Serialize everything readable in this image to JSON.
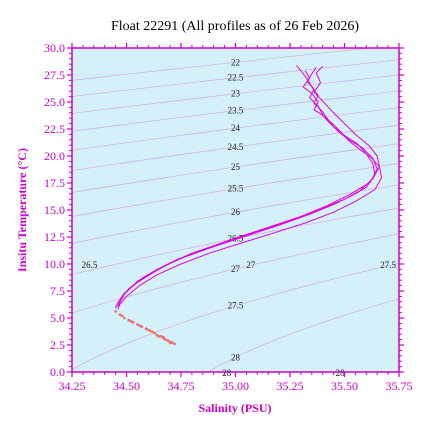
{
  "chart_data": {
    "type": "line",
    "title": "Float 22291  (All profiles as of 26 Feb 2026)",
    "xlabel": "Salinity (PSU)",
    "ylabel": "Insitu Temperature (°C)",
    "xlim": [
      34.25,
      35.75
    ],
    "ylim": [
      0.0,
      30.0
    ],
    "x_ticks": [
      "34.25",
      "34.50",
      "34.75",
      "35.00",
      "35.25",
      "35.50",
      "35.75"
    ],
    "y_ticks": [
      "0.0",
      "2.5",
      "5.0",
      "7.5",
      "10.0",
      "12.5",
      "15.0",
      "17.5",
      "20.0",
      "22.5",
      "25.0",
      "27.5",
      "30.0"
    ],
    "grid": false,
    "colors": {
      "axis": "#cc00cc",
      "plot_bg": "#d4f0f8",
      "profile": "#e000e0",
      "deep_points": "#f07070",
      "isopycnal": "#d8a8e8"
    },
    "isopycnals": [
      {
        "sigma": 22,
        "label": "22"
      },
      {
        "sigma": 22.5,
        "label": "22.5"
      },
      {
        "sigma": 23,
        "label": "23"
      },
      {
        "sigma": 23.5,
        "label": "23.5"
      },
      {
        "sigma": 24,
        "label": "24"
      },
      {
        "sigma": 24.5,
        "label": "24.5"
      },
      {
        "sigma": 25,
        "label": "25"
      },
      {
        "sigma": 25.5,
        "label": "25.5"
      },
      {
        "sigma": 26,
        "label": "26"
      },
      {
        "sigma": 26.5,
        "label": "26.5"
      },
      {
        "sigma": 27,
        "label": "27"
      },
      {
        "sigma": 27.5,
        "label": "27.5"
      },
      {
        "sigma": 28,
        "label": "28"
      }
    ],
    "density_side_labels": [
      {
        "label": "26.5",
        "x": 34.33,
        "y": 9.9
      },
      {
        "label": "27",
        "x": 35.07,
        "y": 9.9
      },
      {
        "label": "27.5",
        "x": 35.7,
        "y": 9.9
      },
      {
        "label": "28",
        "x": 34.96,
        "y": -0.1
      },
      {
        "label": "28",
        "x": 35.48,
        "y": -0.1
      }
    ],
    "series": [
      {
        "x": [
          35.28,
          35.3,
          35.33,
          35.35,
          35.38,
          35.36,
          35.4,
          35.42,
          35.45,
          35.48,
          35.52,
          35.57,
          35.62,
          35.66,
          35.67,
          35.64,
          35.55,
          35.45,
          35.32,
          35.18,
          35.02,
          34.88,
          34.75,
          34.64,
          34.56,
          34.5,
          34.47,
          34.46
        ],
        "y": [
          28.4,
          27.9,
          27.1,
          26.4,
          25.6,
          24.9,
          24.1,
          23.4,
          22.9,
          22.3,
          21.4,
          20.6,
          19.9,
          19.0,
          18.0,
          16.9,
          15.8,
          14.8,
          13.8,
          12.9,
          11.9,
          11.0,
          10.0,
          9.0,
          8.0,
          7.0,
          6.3,
          5.8
        ]
      },
      {
        "x": [
          35.37,
          35.35,
          35.33,
          35.36,
          35.34,
          35.38,
          35.4,
          35.43,
          35.47,
          35.52,
          35.58,
          35.63,
          35.65,
          35.62,
          35.53,
          35.42,
          35.3,
          35.15,
          35.0,
          34.86,
          34.73,
          34.63,
          34.55,
          34.49,
          34.46,
          34.45
        ],
        "y": [
          28.2,
          27.6,
          26.9,
          26.2,
          25.4,
          24.6,
          23.8,
          23.1,
          22.3,
          21.5,
          20.8,
          19.8,
          18.8,
          17.6,
          16.5,
          15.4,
          14.4,
          13.4,
          12.4,
          11.4,
          10.4,
          9.3,
          8.3,
          7.3,
          6.4,
          5.9
        ]
      },
      {
        "x": [
          35.32,
          35.34,
          35.31,
          35.35,
          35.38,
          35.36,
          35.42,
          35.45,
          35.5,
          35.56,
          35.6,
          35.63,
          35.64,
          35.6,
          35.5,
          35.38,
          35.25,
          35.1,
          34.95,
          34.8,
          34.68,
          34.58,
          34.51,
          34.47,
          34.45
        ],
        "y": [
          27.9,
          27.2,
          26.4,
          25.8,
          25.0,
          24.3,
          23.5,
          22.7,
          21.9,
          21.1,
          20.2,
          19.3,
          18.3,
          17.1,
          16.0,
          15.0,
          14.0,
          13.0,
          12.0,
          11.0,
          9.9,
          8.8,
          7.7,
          6.7,
          6.0
        ]
      },
      {
        "x": [
          35.4,
          35.37,
          35.39,
          35.36,
          35.4,
          35.44,
          35.49,
          35.55,
          35.61,
          35.65,
          35.66,
          35.63,
          35.56,
          35.46,
          35.34,
          35.2,
          35.05,
          34.9,
          34.76,
          34.64,
          34.55,
          34.49,
          34.46
        ],
        "y": [
          28.3,
          27.7,
          26.8,
          25.9,
          25.1,
          24.2,
          23.2,
          22.0,
          21.0,
          20.0,
          19.0,
          17.9,
          16.6,
          15.6,
          14.6,
          13.6,
          12.6,
          11.6,
          10.6,
          9.5,
          8.4,
          7.2,
          6.1
        ]
      }
    ],
    "deep_points": {
      "x": [
        34.45,
        34.47,
        34.49,
        34.51,
        34.53,
        34.55,
        34.57,
        34.59,
        34.61,
        34.63,
        34.64,
        34.66,
        34.67,
        34.68,
        34.69,
        34.7,
        34.71,
        34.72,
        34.48,
        34.52,
        34.56,
        34.6,
        34.62,
        34.65,
        34.67,
        34.7
      ],
      "y": [
        5.6,
        5.3,
        5.0,
        4.8,
        4.6,
        4.4,
        4.2,
        4.0,
        3.8,
        3.6,
        3.4,
        3.3,
        3.1,
        3.0,
        2.9,
        2.8,
        2.7,
        2.6,
        5.2,
        4.7,
        4.3,
        3.9,
        3.7,
        3.3,
        3.2,
        2.7
      ]
    }
  }
}
